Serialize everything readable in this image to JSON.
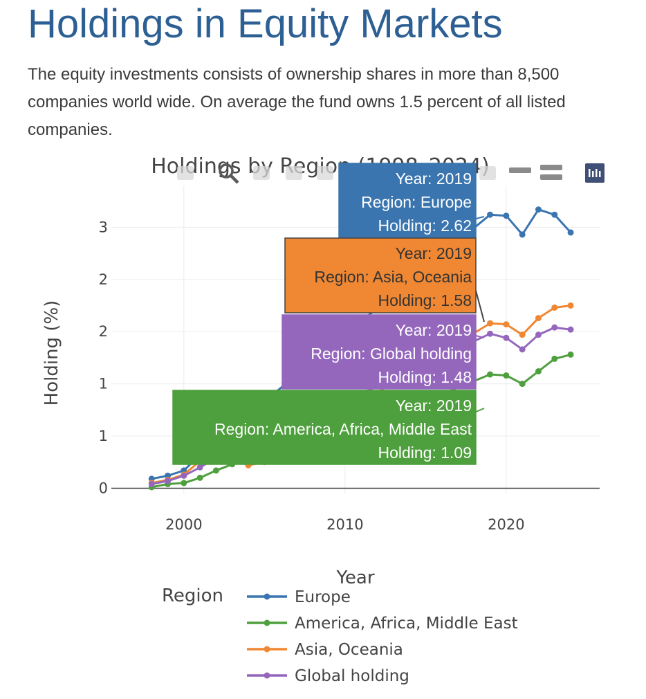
{
  "page": {
    "title": "Holdings in Equity Markets",
    "intro": "The equity investments consists of ownership shares in more than 8,500 companies world wide. On average the fund owns 1.5 percent of all listed companies."
  },
  "modebar": {
    "icons": [
      "camera-icon",
      "zoom-icon",
      "pan-icon",
      "box-select-icon",
      "lasso-icon",
      "zoom-in-icon",
      "zoom-out-icon",
      "autoscale-icon",
      "reset-axes-icon",
      "spike-lines-icon",
      "hover-closest-icon",
      "hover-compare-icon",
      "plotly-logo-icon"
    ]
  },
  "chart_data": {
    "type": "line",
    "title": "Holdings by Region (1998–2024)",
    "xlabel": "Year",
    "ylabel": "Holding (%)",
    "xlim": [
      1995.5,
      2025.8
    ],
    "ylim": [
      -0.05,
      2.9
    ],
    "x_ticks": [
      2000,
      2010,
      2020
    ],
    "y_ticks": [
      {
        "value": 0,
        "label": "0"
      },
      {
        "value": 0.5,
        "label": "1"
      },
      {
        "value": 1.0,
        "label": "1"
      },
      {
        "value": 1.5,
        "label": "2"
      },
      {
        "value": 2.0,
        "label": "2"
      },
      {
        "value": 2.5,
        "label": "3"
      }
    ],
    "grid": true,
    "legend_title": "Region",
    "legend_position": "bottom",
    "colors": {
      "Europe": "#3a75b0",
      "America, Africa, Middle East": "#4e9f3d",
      "Asia, Oceania": "#ef8733",
      "Global holding": "#9467bd"
    },
    "series": [
      {
        "name": "Europe",
        "color": "#3a75b0",
        "x": [
          1998,
          1999,
          2000,
          2001,
          2019,
          2020,
          2021,
          2022,
          2023,
          2024
        ],
        "y": [
          0.09,
          0.12,
          0.17,
          0.32,
          2.62,
          2.61,
          2.43,
          2.67,
          2.62,
          2.45
        ]
      },
      {
        "name": "America, Africa, Middle East",
        "color": "#4e9f3d",
        "x": [
          1998,
          1999,
          2000,
          2001,
          2002,
          2003,
          2004,
          2005,
          2006,
          2019,
          2020,
          2021,
          2022,
          2023,
          2024
        ],
        "y": [
          0.01,
          0.04,
          0.05,
          0.1,
          0.17,
          0.23,
          0.28,
          0.32,
          0.26,
          1.09,
          1.08,
          1.0,
          1.12,
          1.24,
          1.28
        ]
      },
      {
        "name": "Asia, Oceania",
        "color": "#ef8733",
        "x": [
          1998,
          1999,
          2000,
          2001,
          2003,
          2004,
          2005,
          2019,
          2020,
          2021,
          2022,
          2023,
          2024
        ],
        "y": [
          0.05,
          0.08,
          0.13,
          0.26,
          0.28,
          0.22,
          0.25,
          1.58,
          1.57,
          1.47,
          1.63,
          1.73,
          1.75
        ]
      },
      {
        "name": "Global holding",
        "color": "#9467bd",
        "x": [
          1998,
          1999,
          2000,
          2001,
          2002,
          2003,
          2019,
          2020,
          2021,
          2022,
          2023,
          2024
        ],
        "y": [
          0.04,
          0.07,
          0.12,
          0.2,
          0.29,
          0.33,
          1.48,
          1.44,
          1.33,
          1.47,
          1.54,
          1.52
        ]
      }
    ],
    "hover_labels": [
      {
        "series": "Europe",
        "lines": [
          "Year: 2019",
          "Region: Europe",
          "Holding: 2.62"
        ]
      },
      {
        "series": "Asia, Oceania",
        "lines": [
          "Year: 2019",
          "Region: Asia, Oceania",
          "Holding: 1.58"
        ]
      },
      {
        "series": "Global holding",
        "lines": [
          "Year: 2019",
          "Region: Global holding",
          "Holding: 1.48"
        ]
      },
      {
        "series": "America, Africa, Middle East",
        "lines": [
          "Year: 2019",
          "Region: America, Africa, Middle East",
          "Holding: 1.09"
        ]
      }
    ]
  }
}
